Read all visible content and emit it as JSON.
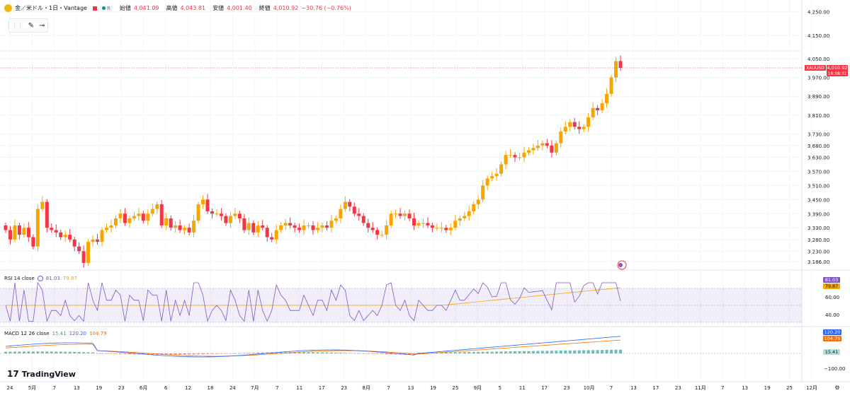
{
  "header": {
    "symbol": "金／米ドル・1日・Vantage",
    "chip_label": "R",
    "open_label": "始値",
    "open": "4,041.09",
    "high_label": "高値",
    "high": "4,043.81",
    "low_label": "安値",
    "low": "4,001.40",
    "close_label": "終値",
    "close": "4,010.92",
    "change": "−30.76 (−0.76%)",
    "colors": {
      "up": "#f7a600",
      "down": "#f23645",
      "text": "#131722"
    }
  },
  "toolbar": {
    "items": [
      "drag-handle-icon",
      "brush-icon",
      "line-tool-icon"
    ],
    "drag": "⋮⋮",
    "brush": "✎",
    "line": "⊸"
  },
  "price_tag": {
    "symbol": "XAUUSD",
    "price": "4,010.92",
    "countdown": "18:38:31"
  },
  "rsi": {
    "label": "RSI 14 close",
    "value1": "81.03",
    "value2": "79.87",
    "tag1": "81.03",
    "tag2": "79.87",
    "level1": "60.00",
    "level2": "40.00"
  },
  "macd": {
    "label": "MACD 12 26 close",
    "hist": "15.41",
    "macd": "120.20",
    "signal": "104.79",
    "tag1": "120.20",
    "tag2": "104.79",
    "tag3": "15.41",
    "level": "−100.00"
  },
  "brand": {
    "name": "TradingView",
    "mark": "17"
  },
  "settings_icon": "⚙",
  "chart_data": {
    "type": "candlestick",
    "y_ticks": [
      "4,250.00",
      "4,150.00",
      "4,050.00",
      "3,970.00",
      "3,890.00",
      "3,810.00",
      "3,730.00",
      "3,680.00",
      "3,630.00",
      "3,570.00",
      "3,510.00",
      "3,450.00",
      "3,390.00",
      "3,330.00",
      "3,280.00",
      "3,230.00",
      "3,186.00"
    ],
    "x_ticks": [
      "24",
      "5月",
      "7",
      "13",
      "19",
      "23",
      "6月",
      "6",
      "12",
      "18",
      "24",
      "7月",
      "7",
      "11",
      "17",
      "23",
      "8月",
      "7",
      "13",
      "19",
      "25",
      "9月",
      "5",
      "11",
      "17",
      "23",
      "10月",
      "7",
      "13",
      "17",
      "23",
      "11月",
      "7",
      "13",
      "19",
      "25",
      "12月"
    ],
    "closes": [
      3320,
      3280,
      3340,
      3300,
      3330,
      3290,
      3250,
      3410,
      3440,
      3330,
      3320,
      3310,
      3290,
      3300,
      3280,
      3250,
      3230,
      3180,
      3270,
      3280,
      3270,
      3320,
      3330,
      3340,
      3370,
      3390,
      3350,
      3370,
      3380,
      3390,
      3360,
      3390,
      3410,
      3430,
      3340,
      3370,
      3330,
      3340,
      3320,
      3330,
      3310,
      3360,
      3430,
      3450,
      3400,
      3390,
      3390,
      3380,
      3350,
      3380,
      3390,
      3370,
      3320,
      3350,
      3310,
      3340,
      3330,
      3290,
      3280,
      3320,
      3340,
      3350,
      3340,
      3330,
      3320,
      3340,
      3340,
      3320,
      3330,
      3340,
      3330,
      3360,
      3370,
      3410,
      3440,
      3420,
      3390,
      3380,
      3350,
      3330,
      3320,
      3300,
      3300,
      3340,
      3390,
      3390,
      3380,
      3390,
      3370,
      3340,
      3350,
      3350,
      3340,
      3330,
      3330,
      3330,
      3320,
      3330,
      3360,
      3370,
      3380,
      3400,
      3430,
      3450,
      3510,
      3540,
      3550,
      3560,
      3600,
      3640,
      3640,
      3630,
      3630,
      3650,
      3660,
      3670,
      3680,
      3690,
      3680,
      3650,
      3690,
      3740,
      3760,
      3780,
      3760,
      3750,
      3760,
      3800,
      3840,
      3830,
      3860,
      3900,
      3970,
      4040,
      4010.92
    ]
  }
}
